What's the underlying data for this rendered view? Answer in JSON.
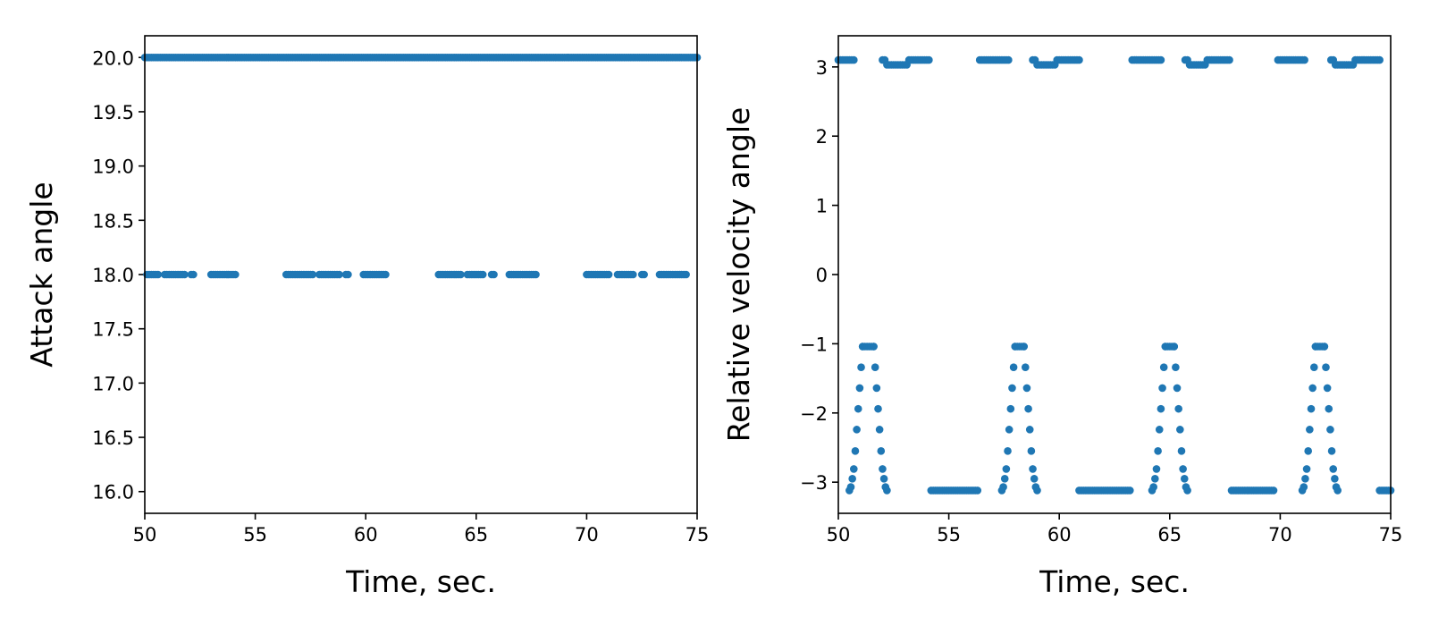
{
  "chart_data": [
    {
      "type": "scatter",
      "title": "",
      "xlabel": "Time, sec.",
      "ylabel": "Attack angle",
      "xlim": [
        50,
        75
      ],
      "ylim": [
        15.8,
        20.2
      ],
      "xticks": [
        50,
        55,
        60,
        65,
        70,
        75
      ],
      "yticks": [
        16.0,
        16.5,
        17.0,
        17.5,
        18.0,
        18.5,
        19.0,
        19.5,
        20.0
      ],
      "ytick_labels": [
        "16.0",
        "16.5",
        "17.0",
        "17.5",
        "18.0",
        "18.5",
        "19.0",
        "19.5",
        "20.0"
      ],
      "grid": false,
      "marker_color": "#1f77b4",
      "series": [
        {
          "x_step": 0.1,
          "top_value": 20.0,
          "points": [
            {
              "y": 20.0,
              "x_ranges": [
                [
                  50.0,
                  75.0
                ]
              ]
            },
            {
              "y": 18.0,
              "x_ranges": [
                [
                  50.1,
                  50.6
                ],
                [
                  50.9,
                  51.8
                ],
                [
                  52.1,
                  52.2
                ],
                [
                  53.0,
                  54.1
                ],
                [
                  56.4,
                  57.6
                ],
                [
                  57.9,
                  58.8
                ],
                [
                  59.1,
                  59.2
                ],
                [
                  59.9,
                  60.9
                ],
                [
                  63.3,
                  64.3
                ],
                [
                  64.6,
                  65.3
                ],
                [
                  65.7,
                  65.8
                ],
                [
                  66.5,
                  67.7
                ],
                [
                  70.0,
                  71.0
                ],
                [
                  71.4,
                  72.1
                ],
                [
                  72.5,
                  72.6
                ],
                [
                  73.3,
                  74.5
                ]
              ]
            }
          ]
        }
      ]
    },
    {
      "type": "scatter",
      "title": "",
      "xlabel": "Time, sec.",
      "ylabel": "Relative velocity angle",
      "xlim": [
        50,
        75
      ],
      "ylim": [
        -3.45,
        3.45
      ],
      "xticks": [
        50,
        55,
        60,
        65,
        70,
        75
      ],
      "yticks": [
        -3,
        -2,
        -1,
        0,
        1,
        2,
        3
      ],
      "ytick_labels": [
        "−3",
        "−2",
        "−1",
        "0",
        "1",
        "2",
        "3"
      ],
      "grid": false,
      "marker_color": "#1f77b4",
      "series": [
        {
          "x_step": 0.1,
          "top_segments": [
            {
              "y": 3.1,
              "x_range": [
                50.0,
                50.7
              ]
            },
            {
              "y": 3.1,
              "x_range": [
                52.0,
                52.1
              ]
            },
            {
              "y": 3.03,
              "x_range": [
                52.2,
                53.1
              ]
            },
            {
              "y": 3.1,
              "x_range": [
                53.2,
                54.1
              ]
            },
            {
              "y": 3.1,
              "x_range": [
                56.4,
                57.7
              ]
            },
            {
              "y": 3.1,
              "x_range": [
                58.8,
                58.9
              ]
            },
            {
              "y": 3.03,
              "x_range": [
                59.0,
                59.8
              ]
            },
            {
              "y": 3.1,
              "x_range": [
                59.9,
                60.9
              ]
            },
            {
              "y": 3.1,
              "x_range": [
                63.3,
                64.6
              ]
            },
            {
              "y": 3.1,
              "x_range": [
                65.7,
                65.8
              ]
            },
            {
              "y": 3.03,
              "x_range": [
                65.9,
                66.6
              ]
            },
            {
              "y": 3.1,
              "x_range": [
                66.7,
                67.7
              ]
            },
            {
              "y": 3.1,
              "x_range": [
                69.9,
                71.1
              ]
            },
            {
              "y": 3.1,
              "x_range": [
                72.3,
                72.4
              ]
            },
            {
              "y": 3.03,
              "x_range": [
                72.5,
                73.3
              ]
            },
            {
              "y": 3.1,
              "x_range": [
                73.4,
                74.5
              ]
            }
          ],
          "bottom_segments": [
            {
              "y": -3.12,
              "x_range": [
                54.2,
                56.3
              ]
            },
            {
              "y": -3.12,
              "x_range": [
                60.9,
                63.2
              ]
            },
            {
              "y": -3.12,
              "x_range": [
                67.8,
                69.7
              ]
            },
            {
              "y": -3.12,
              "x_range": [
                74.5,
                75.0
              ]
            }
          ],
          "peaks": [
            {
              "start": 50.5,
              "apex_start": 51.1,
              "apex_end": 51.6,
              "end": 52.2
            },
            {
              "start": 57.4,
              "apex_start": 58.0,
              "apex_end": 58.4,
              "end": 59.0
            },
            {
              "start": 64.2,
              "apex_start": 64.8,
              "apex_end": 65.2,
              "end": 65.8
            },
            {
              "start": 71.0,
              "apex_start": 71.6,
              "apex_end": 72.0,
              "end": 72.6
            }
          ],
          "peak_levels": [
            -3.12,
            -3.07,
            -2.95,
            -2.81,
            -2.55,
            -2.24,
            -1.94,
            -1.64,
            -1.34,
            -1.04
          ]
        }
      ]
    }
  ]
}
